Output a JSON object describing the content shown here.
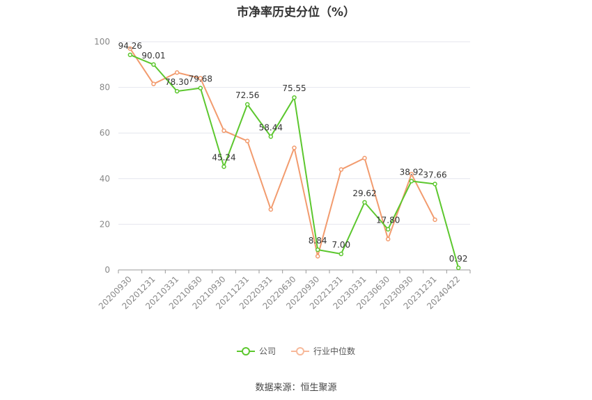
{
  "chart_data": {
    "type": "line",
    "title": "市净率历史分位（%）",
    "categories": [
      "20200930",
      "20201231",
      "20210331",
      "20210630",
      "20210930",
      "20211231",
      "20220331",
      "20220630",
      "20220930",
      "20221231",
      "20230331",
      "20230630",
      "20230930",
      "20231231",
      "20240422"
    ],
    "ylim": [
      0,
      100
    ],
    "yticks": [
      0,
      20,
      40,
      60,
      80,
      100
    ],
    "grid": true,
    "legend_position": "bottom",
    "series": [
      {
        "name": "公司",
        "color": "#5cc72e",
        "values": [
          94.26,
          90.01,
          78.3,
          79.68,
          45.24,
          72.56,
          58.44,
          75.55,
          8.84,
          7.0,
          29.62,
          17.8,
          38.92,
          37.66,
          0.92
        ],
        "labels": [
          "94.26",
          "90.01",
          "78.30",
          "79.68",
          "45.24",
          "72.56",
          "58.44",
          "75.55",
          "8.84",
          "7.00",
          "29.62",
          "17.80",
          "38.92",
          "37.66",
          "0.92"
        ]
      },
      {
        "name": "行业中位数",
        "color": "#f29b6e",
        "values": [
          97,
          81.5,
          86.5,
          84,
          61,
          56.5,
          26.5,
          53.5,
          6,
          44,
          49,
          13.5,
          42,
          22,
          null
        ]
      }
    ],
    "source": "数据来源：恒生聚源"
  }
}
